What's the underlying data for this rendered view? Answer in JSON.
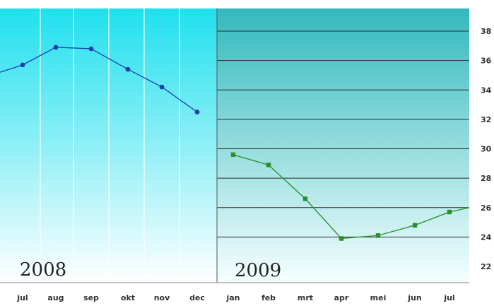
{
  "chart_data": {
    "type": "line",
    "title": "",
    "xlabel": "",
    "ylabel": "",
    "ylim": [
      22,
      38
    ],
    "yticks": [
      22,
      24,
      26,
      28,
      30,
      32,
      34,
      36,
      38
    ],
    "categories": [
      "jul",
      "aug",
      "sep",
      "okt",
      "nov",
      "dec",
      "jan",
      "feb",
      "mrt",
      "apr",
      "mei",
      "jun",
      "jul"
    ],
    "panels": [
      {
        "year_label": "2008",
        "categories": [
          "jul",
          "aug",
          "sep",
          "okt",
          "nov",
          "dec"
        ]
      },
      {
        "year_label": "2009",
        "categories": [
          "jan",
          "feb",
          "mrt",
          "apr",
          "mei",
          "jun",
          "jul"
        ]
      }
    ],
    "series": [
      {
        "color": "#1a3fb0",
        "marker": "circle",
        "x": [
          "jul",
          "aug",
          "sep",
          "okt",
          "nov",
          "dec"
        ],
        "values": [
          35.7,
          36.9,
          36.8,
          35.4,
          34.2,
          32.5
        ],
        "line_starts_before_first_point_at": 35.2
      },
      {
        "color": "#2a8f2a",
        "marker": "square",
        "x": [
          "jan",
          "feb",
          "mrt",
          "apr",
          "mei",
          "jun",
          "jul"
        ],
        "values": [
          29.6,
          28.9,
          26.6,
          23.9,
          24.1,
          24.8,
          25.7
        ],
        "line_ends_after_last_point_at": 26.0
      }
    ],
    "grid": true,
    "colors": {
      "panel_2008_top": "#1fe0ee",
      "panel_2008_bottom": "#ffffff",
      "panel_2009_top": "#33b9bd",
      "panel_2009_bottom": "#f5ffff",
      "gridline": "#2b2b2b",
      "vertical_grid_2008": "#ffffff"
    }
  }
}
